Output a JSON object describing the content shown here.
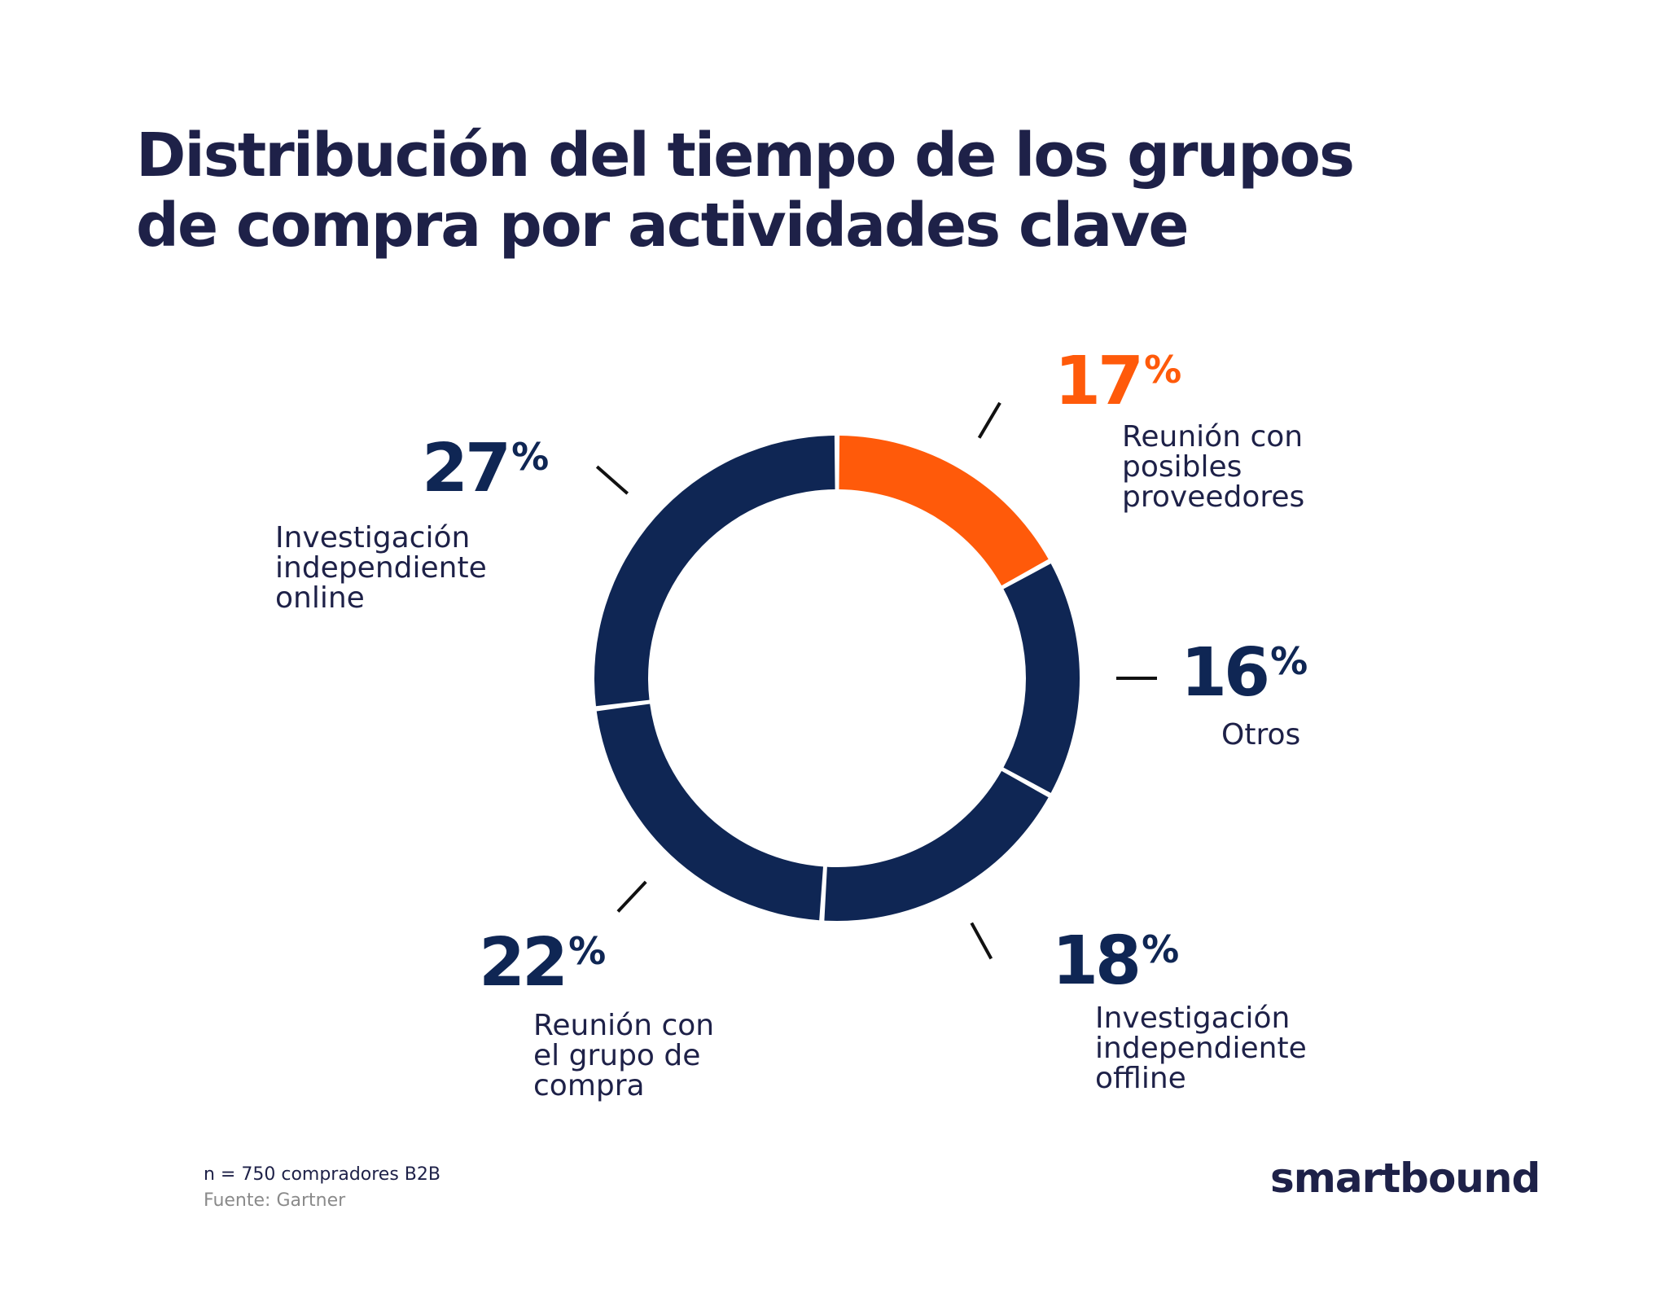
{
  "title": {
    "line1": "Distribución del tiempo de los grupos",
    "line2": "de compra por actividades clave"
  },
  "chart_data": {
    "type": "pie",
    "variant": "donut",
    "title": "Distribución del tiempo de los grupos de compra por actividades clave",
    "unit": "%",
    "slices": [
      {
        "label_lines": [
          "Reunión con",
          "posibles",
          "proveedores"
        ],
        "value": 17,
        "pct_text": "17",
        "color": "#ff5a0a"
      },
      {
        "label_lines": [
          "Otros"
        ],
        "value": 16,
        "pct_text": "16",
        "color": "#0f2654"
      },
      {
        "label_lines": [
          "Investigación",
          "independiente",
          "offline"
        ],
        "value": 18,
        "pct_text": "18",
        "color": "#0f2654"
      },
      {
        "label_lines": [
          "Reunión con",
          "el grupo de",
          "compra"
        ],
        "value": 22,
        "pct_text": "22",
        "color": "#0f2654"
      },
      {
        "label_lines": [
          "Investigación",
          "independiente",
          "online"
        ],
        "value": 27,
        "pct_text": "27",
        "color": "#0f2654"
      }
    ],
    "percent_sign": "%"
  },
  "footer": {
    "sample": "n = 750 compradores B2B",
    "source": "Fuente: Gartner"
  },
  "brand": "smartbound"
}
